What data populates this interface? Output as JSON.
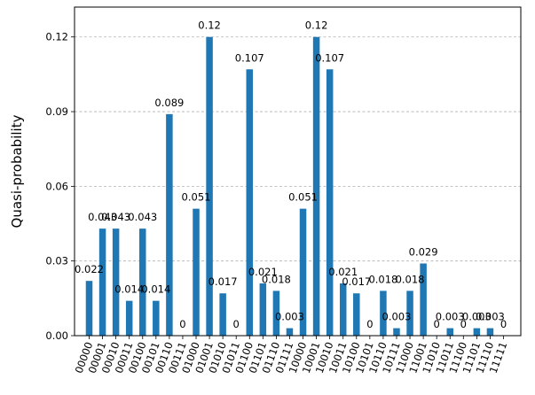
{
  "chart_data": {
    "type": "bar",
    "ylabel": "Quasi-probability",
    "xlabel": "",
    "ylim": [
      0,
      0.132
    ],
    "yticks": [
      0.0,
      0.03,
      0.06,
      0.09,
      0.12
    ],
    "ytick_labels": [
      "0.00",
      "0.03",
      "0.06",
      "0.09",
      "0.12"
    ],
    "grid": "horizontal-dashed",
    "bar_color": "#1f77b4",
    "categories": [
      "00000",
      "00001",
      "00010",
      "00011",
      "00100",
      "00101",
      "00110",
      "00111",
      "01000",
      "01001",
      "01010",
      "01011",
      "01100",
      "01101",
      "01110",
      "01111",
      "10000",
      "10001",
      "10010",
      "10011",
      "10100",
      "10101",
      "10110",
      "10111",
      "11000",
      "11001",
      "11010",
      "11011",
      "11100",
      "11101",
      "11110",
      "11111"
    ],
    "values": [
      0.022,
      0.043,
      0.043,
      0.014,
      0.043,
      0.014,
      0.089,
      0,
      0.051,
      0.12,
      0.017,
      0,
      0.107,
      0.021,
      0.018,
      0.003,
      0.051,
      0.12,
      0.107,
      0.021,
      0.017,
      0,
      0.018,
      0.003,
      0.018,
      0.029,
      0,
      0.003,
      0,
      0.003,
      0.003,
      0
    ],
    "labels": [
      "0.022",
      "0.043",
      "0.043",
      "0.014",
      "0.043",
      "0.014",
      "0.089",
      "0",
      "0.051",
      "0.12",
      "0.017",
      "0",
      "0.107",
      "0.021",
      "0.018",
      "0.003",
      "0.051",
      "0.12",
      "0.107",
      "0.021",
      "0.017",
      "0",
      "0.018",
      "0.003",
      "0.018",
      "0.029",
      "0",
      "0.003",
      "0",
      "0.003",
      "0.003",
      "0"
    ]
  }
}
